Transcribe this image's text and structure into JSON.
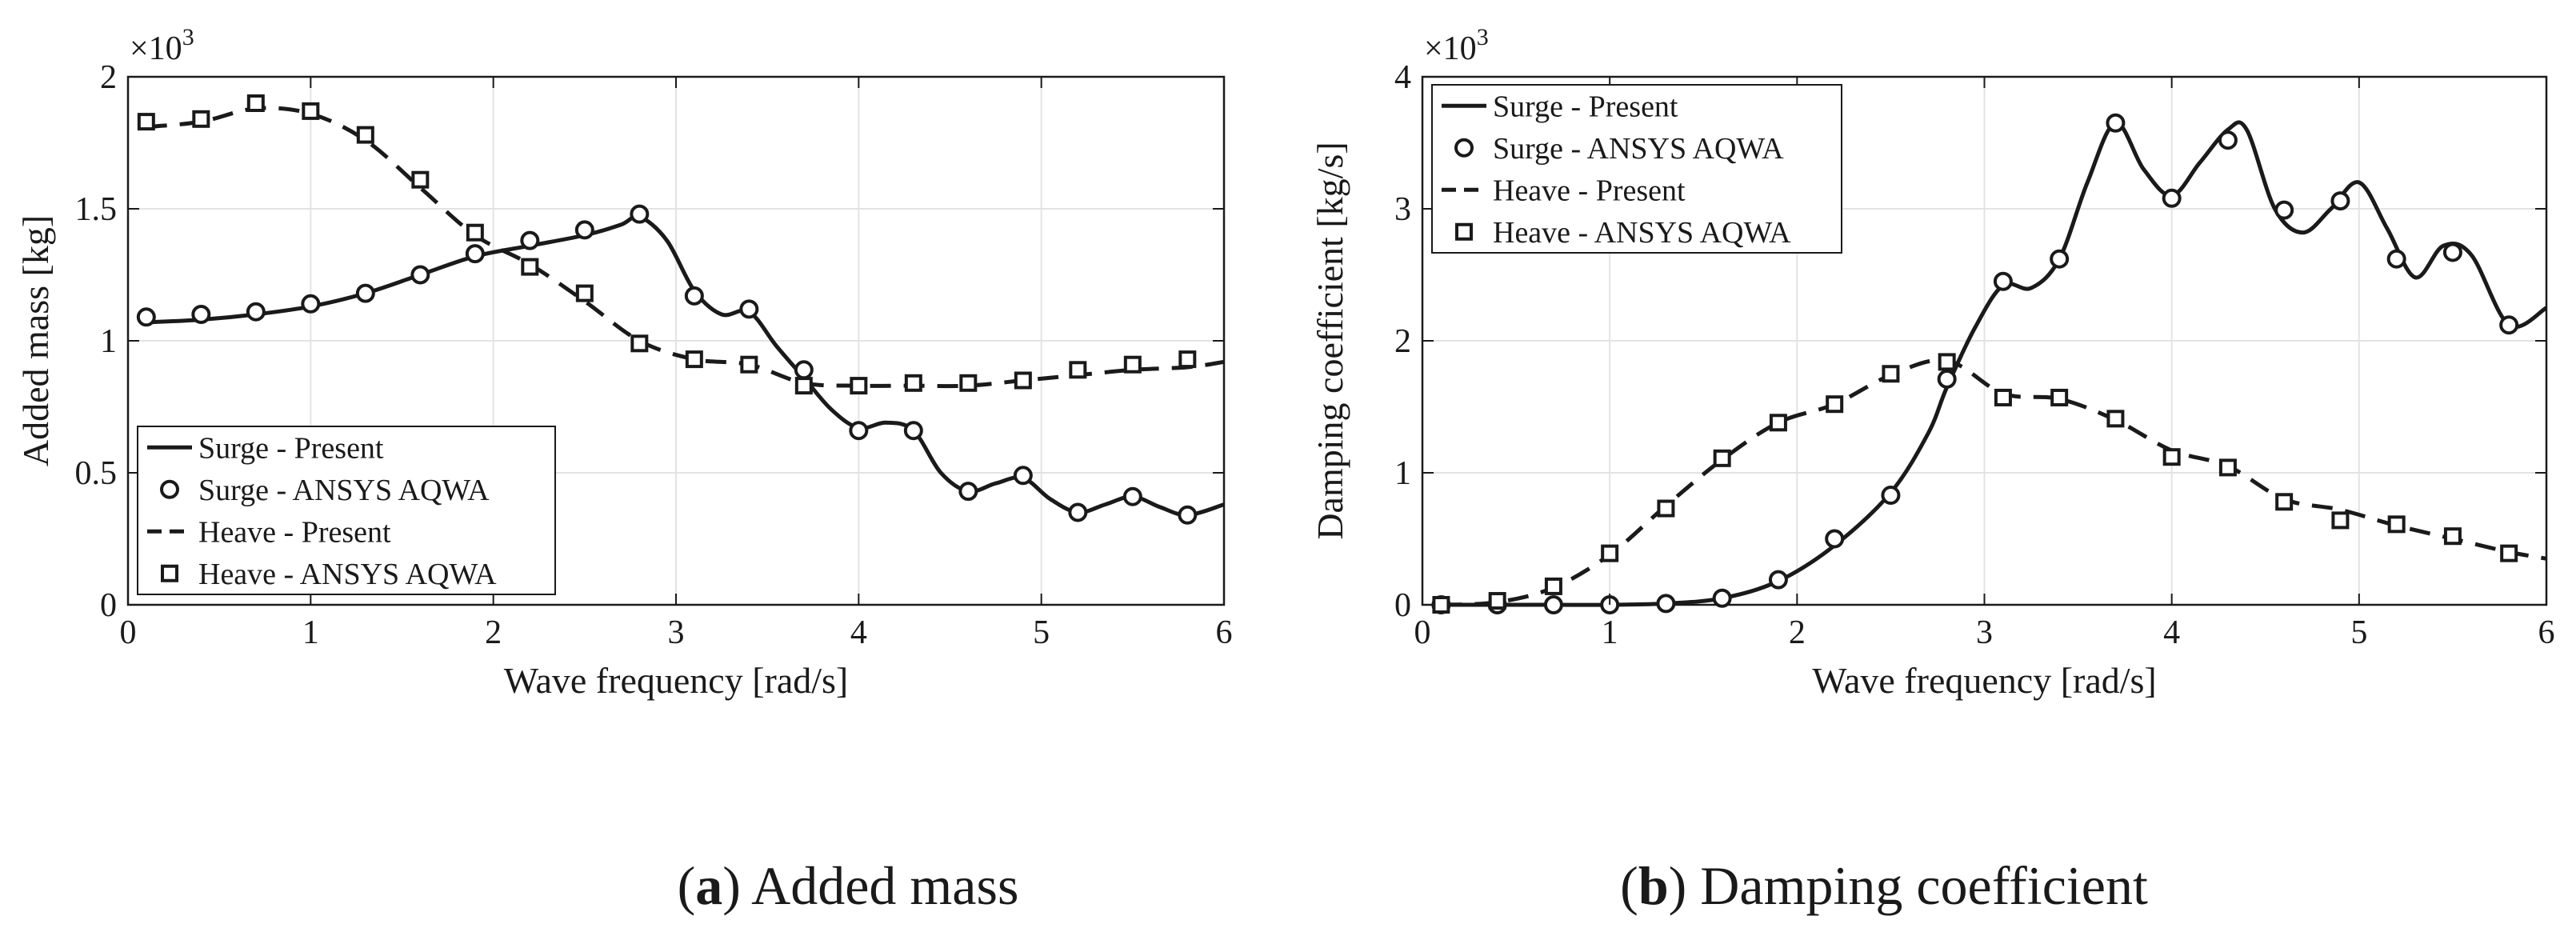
{
  "chart_data": [
    {
      "id": "a",
      "type": "line",
      "title": "Added mass",
      "xlabel": "Wave frequency [rad/s]",
      "ylabel": "Added mass [kg]",
      "y_multiplier_label": "×10",
      "y_multiplier_exponent": "3",
      "xlim": [
        0,
        6
      ],
      "ylim": [
        0,
        2
      ],
      "xticks": [
        0,
        1,
        2,
        3,
        4,
        5,
        6
      ],
      "yticks": [
        0,
        0.5,
        1,
        1.5,
        2
      ],
      "xtick_labels": [
        "0",
        "1",
        "2",
        "3",
        "4",
        "5",
        "6"
      ],
      "ytick_labels": [
        "0",
        "0.5",
        "1",
        "1.5",
        "2"
      ],
      "grid": true,
      "legend_position": "bottom-left",
      "series": [
        {
          "name": "Surge - Present",
          "style": "solid",
          "x": [
            0.1,
            0.4,
            0.7,
            1.0,
            1.3,
            1.6,
            1.9,
            2.2,
            2.5,
            2.7,
            2.8,
            2.95,
            3.1,
            3.25,
            3.4,
            3.55,
            3.7,
            3.85,
            4.0,
            4.15,
            4.3,
            4.45,
            4.6,
            4.75,
            4.9,
            5.05,
            5.2,
            5.35,
            5.5,
            5.65,
            5.8,
            6.0
          ],
          "y": [
            1.07,
            1.08,
            1.1,
            1.13,
            1.18,
            1.25,
            1.32,
            1.36,
            1.4,
            1.44,
            1.47,
            1.38,
            1.19,
            1.1,
            1.11,
            0.98,
            0.86,
            0.74,
            0.67,
            0.69,
            0.66,
            0.5,
            0.43,
            0.46,
            0.48,
            0.4,
            0.35,
            0.38,
            0.41,
            0.37,
            0.34,
            0.38
          ]
        },
        {
          "name": "Surge - ANSYS AQWA",
          "style": "circle-markers",
          "x": [
            0.1,
            0.4,
            0.7,
            1.0,
            1.3,
            1.6,
            1.9,
            2.2,
            2.5,
            2.8,
            3.1,
            3.4,
            3.7,
            4.0,
            4.3,
            4.6,
            4.9,
            5.2,
            5.5,
            5.8
          ],
          "y": [
            1.09,
            1.1,
            1.11,
            1.14,
            1.18,
            1.25,
            1.33,
            1.38,
            1.42,
            1.48,
            1.17,
            1.12,
            0.89,
            0.66,
            0.66,
            0.43,
            0.49,
            0.35,
            0.41,
            0.34
          ]
        },
        {
          "name": "Heave - Present",
          "style": "dashed",
          "x": [
            0.1,
            0.4,
            0.7,
            1.0,
            1.3,
            1.6,
            1.9,
            2.2,
            2.5,
            2.8,
            3.1,
            3.4,
            3.7,
            4.0,
            4.3,
            4.6,
            4.9,
            5.2,
            5.5,
            5.8,
            6.0
          ],
          "y": [
            1.81,
            1.83,
            1.88,
            1.86,
            1.76,
            1.58,
            1.4,
            1.29,
            1.15,
            1.0,
            0.93,
            0.91,
            0.84,
            0.83,
            0.83,
            0.83,
            0.85,
            0.87,
            0.89,
            0.9,
            0.92
          ]
        },
        {
          "name": "Heave - ANSYS AQWA",
          "style": "square-markers",
          "x": [
            0.1,
            0.4,
            0.7,
            1.0,
            1.3,
            1.6,
            1.9,
            2.2,
            2.5,
            2.8,
            3.1,
            3.4,
            3.7,
            4.0,
            4.3,
            4.6,
            4.9,
            5.2,
            5.5,
            5.8
          ],
          "y": [
            1.83,
            1.84,
            1.9,
            1.87,
            1.78,
            1.61,
            1.41,
            1.28,
            1.18,
            0.99,
            0.93,
            0.91,
            0.83,
            0.83,
            0.84,
            0.84,
            0.85,
            0.89,
            0.91,
            0.93
          ]
        }
      ]
    },
    {
      "id": "b",
      "type": "line",
      "title": "Damping coefficient",
      "xlabel": "Wave frequency [rad/s]",
      "ylabel": "Damping coefficient [kg/s]",
      "y_multiplier_label": "×10",
      "y_multiplier_exponent": "3",
      "xlim": [
        0,
        6
      ],
      "ylim": [
        0,
        4
      ],
      "xticks": [
        0,
        1,
        2,
        3,
        4,
        5,
        6
      ],
      "yticks": [
        0,
        1,
        2,
        3,
        4
      ],
      "xtick_labels": [
        "0",
        "1",
        "2",
        "3",
        "4",
        "5",
        "6"
      ],
      "ytick_labels": [
        "0",
        "1",
        "2",
        "3",
        "4"
      ],
      "grid": true,
      "legend_position": "top-left",
      "series": [
        {
          "name": "Surge - Present",
          "style": "solid",
          "x": [
            0.1,
            0.4,
            0.7,
            1.0,
            1.3,
            1.6,
            1.9,
            2.2,
            2.5,
            2.7,
            2.8,
            2.95,
            3.1,
            3.25,
            3.4,
            3.55,
            3.7,
            3.85,
            4.0,
            4.15,
            4.3,
            4.4,
            4.55,
            4.7,
            4.85,
            5.0,
            5.15,
            5.3,
            5.45,
            5.6,
            5.8,
            6.0
          ],
          "y": [
            0.0,
            0.0,
            0.0,
            0.0,
            0.01,
            0.05,
            0.18,
            0.45,
            0.85,
            1.3,
            1.65,
            2.1,
            2.42,
            2.4,
            2.62,
            3.2,
            3.65,
            3.3,
            3.1,
            3.35,
            3.6,
            3.6,
            3.0,
            2.82,
            3.0,
            3.2,
            2.85,
            2.48,
            2.72,
            2.65,
            2.12,
            2.25
          ]
        },
        {
          "name": "Surge - ANSYS AQWA",
          "style": "circle-markers",
          "x": [
            0.1,
            0.4,
            0.7,
            1.0,
            1.3,
            1.6,
            1.9,
            2.2,
            2.5,
            2.8,
            3.1,
            3.4,
            3.7,
            4.0,
            4.3,
            4.6,
            4.9,
            5.2,
            5.5,
            5.8
          ],
          "y": [
            0.0,
            0.0,
            0.0,
            0.0,
            0.01,
            0.05,
            0.19,
            0.5,
            0.83,
            1.71,
            2.45,
            2.62,
            3.65,
            3.08,
            3.52,
            2.99,
            3.06,
            2.62,
            2.67,
            2.12
          ]
        },
        {
          "name": "Heave - Present",
          "style": "dashed",
          "x": [
            0.1,
            0.4,
            0.7,
            1.0,
            1.3,
            1.6,
            1.9,
            2.2,
            2.5,
            2.8,
            3.1,
            3.4,
            3.7,
            4.0,
            4.3,
            4.6,
            4.9,
            5.2,
            5.5,
            5.8,
            6.0
          ],
          "y": [
            0.0,
            0.02,
            0.13,
            0.38,
            0.75,
            1.1,
            1.38,
            1.52,
            1.74,
            1.85,
            1.6,
            1.56,
            1.4,
            1.17,
            1.05,
            0.8,
            0.72,
            0.6,
            0.5,
            0.4,
            0.35
          ]
        },
        {
          "name": "Heave - ANSYS AQWA",
          "style": "square-markers",
          "x": [
            0.1,
            0.4,
            0.7,
            1.0,
            1.3,
            1.6,
            1.9,
            2.2,
            2.5,
            2.8,
            3.1,
            3.4,
            3.7,
            4.0,
            4.3,
            4.6,
            4.9,
            5.2,
            5.5,
            5.8
          ],
          "y": [
            0.0,
            0.03,
            0.14,
            0.39,
            0.73,
            1.11,
            1.38,
            1.52,
            1.75,
            1.84,
            1.57,
            1.57,
            1.41,
            1.12,
            1.04,
            0.78,
            0.64,
            0.61,
            0.52,
            0.39
          ]
        }
      ]
    }
  ],
  "captions": [
    {
      "letter": "a",
      "text": " Added mass",
      "open": "(",
      "close": ")"
    },
    {
      "letter": "b",
      "text": " Damping coefficient",
      "open": "(",
      "close": ")"
    }
  ]
}
